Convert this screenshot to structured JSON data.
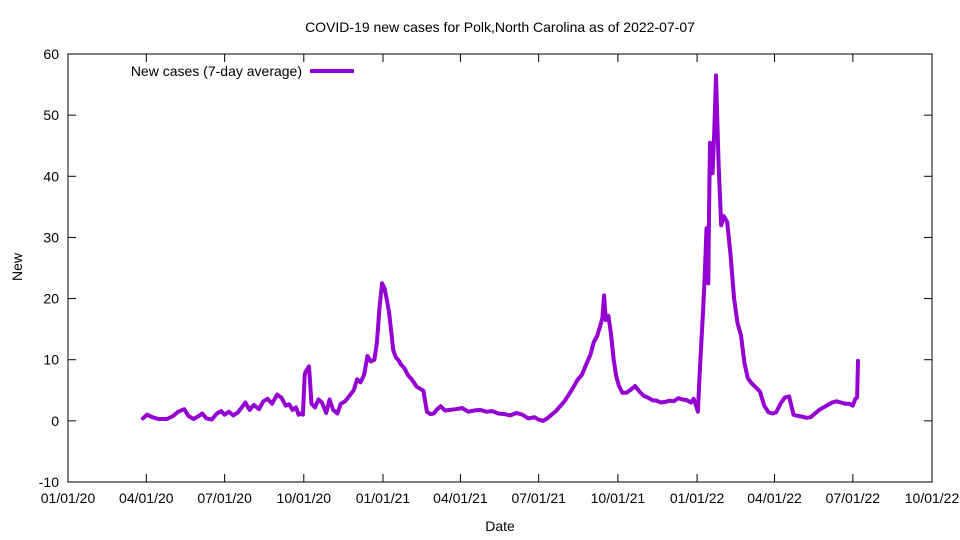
{
  "chart_data": {
    "type": "line",
    "title": "COVID-19 new cases for Polk,North Carolina as of 2022-07-07",
    "xlabel": "Date",
    "ylabel": "New",
    "xlim": [
      "2020-01-01",
      "2022-10-01"
    ],
    "ylim": [
      -10,
      60
    ],
    "x_ticks": [
      "01/01/20",
      "04/01/20",
      "07/01/20",
      "10/01/20",
      "01/01/21",
      "04/01/21",
      "07/01/21",
      "10/01/21",
      "01/01/22",
      "04/01/22",
      "07/01/22",
      "10/01/22"
    ],
    "x_tick_dates": [
      "2020-01-01",
      "2020-04-01",
      "2020-07-01",
      "2020-10-01",
      "2021-01-01",
      "2021-04-01",
      "2021-07-01",
      "2021-10-01",
      "2022-01-01",
      "2022-04-01",
      "2022-07-01",
      "2022-10-01"
    ],
    "y_ticks": [
      -10,
      0,
      10,
      20,
      30,
      40,
      50,
      60
    ],
    "legend": {
      "position": "top-left"
    },
    "series": [
      {
        "name": "New cases (7-day average)",
        "color": "#9400d3",
        "x": [
          "2020-03-28",
          "2020-04-02",
          "2020-04-08",
          "2020-04-15",
          "2020-04-25",
          "2020-05-02",
          "2020-05-08",
          "2020-05-15",
          "2020-05-20",
          "2020-05-26",
          "2020-06-01",
          "2020-06-05",
          "2020-06-10",
          "2020-06-16",
          "2020-06-22",
          "2020-06-27",
          "2020-07-01",
          "2020-07-06",
          "2020-07-11",
          "2020-07-16",
          "2020-07-21",
          "2020-07-25",
          "2020-07-30",
          "2020-08-04",
          "2020-08-10",
          "2020-08-15",
          "2020-08-20",
          "2020-08-25",
          "2020-08-31",
          "2020-09-05",
          "2020-09-10",
          "2020-09-14",
          "2020-09-18",
          "2020-09-22",
          "2020-09-25",
          "2020-09-27",
          "2020-09-30",
          "2020-10-02",
          "2020-10-03",
          "2020-10-07",
          "2020-10-10",
          "2020-10-14",
          "2020-10-18",
          "2020-10-22",
          "2020-10-27",
          "2020-10-31",
          "2020-11-04",
          "2020-11-09",
          "2020-11-13",
          "2020-11-18",
          "2020-11-23",
          "2020-11-28",
          "2020-12-02",
          "2020-12-06",
          "2020-12-10",
          "2020-12-14",
          "2020-12-18",
          "2020-12-22",
          "2020-12-25",
          "2020-12-28",
          "2020-12-31",
          "2021-01-03",
          "2021-01-06",
          "2021-01-08",
          "2021-01-10",
          "2021-01-13",
          "2021-01-16",
          "2021-01-19",
          "2021-01-22",
          "2021-01-26",
          "2021-01-30",
          "2021-02-04",
          "2021-02-09",
          "2021-02-13",
          "2021-02-17",
          "2021-02-21",
          "2021-02-25",
          "2021-03-01",
          "2021-03-05",
          "2021-03-09",
          "2021-03-14",
          "2021-03-20",
          "2021-03-27",
          "2021-04-03",
          "2021-04-10",
          "2021-04-17",
          "2021-04-24",
          "2021-05-01",
          "2021-05-08",
          "2021-05-15",
          "2021-05-22",
          "2021-05-29",
          "2021-06-05",
          "2021-06-12",
          "2021-06-19",
          "2021-06-26",
          "2021-07-01",
          "2021-07-06",
          "2021-07-11",
          "2021-07-16",
          "2021-07-21",
          "2021-07-26",
          "2021-07-31",
          "2021-08-05",
          "2021-08-10",
          "2021-08-15",
          "2021-08-20",
          "2021-08-25",
          "2021-08-30",
          "2021-09-03",
          "2021-09-07",
          "2021-09-10",
          "2021-09-13",
          "2021-09-15",
          "2021-09-17",
          "2021-09-20",
          "2021-09-23",
          "2021-09-26",
          "2021-09-29",
          "2021-10-02",
          "2021-10-06",
          "2021-10-11",
          "2021-10-16",
          "2021-10-21",
          "2021-10-26",
          "2021-10-31",
          "2021-11-05",
          "2021-11-10",
          "2021-11-15",
          "2021-11-20",
          "2021-11-25",
          "2021-11-30",
          "2021-12-05",
          "2021-12-10",
          "2021-12-15",
          "2021-12-20",
          "2021-12-25",
          "2021-12-28",
          "2021-12-31",
          "2022-01-02",
          "2022-01-04",
          "2022-01-06",
          "2022-01-08",
          "2022-01-10",
          "2022-01-11",
          "2022-01-12",
          "2022-01-13",
          "2022-01-14",
          "2022-01-15",
          "2022-01-16",
          "2022-01-17",
          "2022-01-19",
          "2022-01-21",
          "2022-01-23",
          "2022-01-26",
          "2022-01-29",
          "2022-02-01",
          "2022-02-05",
          "2022-02-09",
          "2022-02-13",
          "2022-02-17",
          "2022-02-21",
          "2022-02-25",
          "2022-03-01",
          "2022-03-05",
          "2022-03-10",
          "2022-03-15",
          "2022-03-20",
          "2022-03-25",
          "2022-03-30",
          "2022-04-03",
          "2022-04-08",
          "2022-04-13",
          "2022-04-18",
          "2022-04-23",
          "2022-04-28",
          "2022-05-03",
          "2022-05-08",
          "2022-05-13",
          "2022-05-18",
          "2022-05-23",
          "2022-05-28",
          "2022-06-02",
          "2022-06-07",
          "2022-06-12",
          "2022-06-17",
          "2022-06-22",
          "2022-06-27",
          "2022-07-01",
          "2022-07-04",
          "2022-07-06",
          "2022-07-07"
        ],
        "y": [
          0.4,
          1.0,
          0.6,
          0.3,
          0.3,
          0.8,
          1.5,
          1.9,
          0.8,
          0.3,
          0.8,
          1.2,
          0.4,
          0.2,
          1.2,
          1.6,
          1.0,
          1.5,
          0.9,
          1.3,
          2.2,
          3.0,
          1.8,
          2.6,
          1.9,
          3.2,
          3.6,
          2.8,
          4.3,
          3.8,
          2.5,
          2.7,
          1.8,
          2.2,
          1.0,
          1.2,
          1.0,
          7.5,
          8.0,
          8.9,
          2.8,
          2.2,
          3.5,
          3.0,
          1.3,
          3.5,
          1.8,
          1.2,
          2.8,
          3.2,
          4.1,
          5.0,
          6.8,
          6.3,
          7.5,
          10.6,
          9.7,
          10.0,
          12.8,
          18.5,
          22.5,
          21.6,
          19.4,
          17.8,
          15.4,
          11.5,
          10.4,
          9.9,
          9.2,
          8.6,
          7.5,
          6.7,
          5.6,
          5.3,
          4.9,
          1.5,
          1.1,
          1.2,
          1.9,
          2.4,
          1.7,
          1.8,
          1.9,
          2.1,
          1.5,
          1.7,
          1.8,
          1.5,
          1.6,
          1.2,
          1.1,
          0.9,
          1.3,
          1.0,
          0.4,
          0.6,
          0.2,
          0.0,
          0.4,
          1.0,
          1.6,
          2.4,
          3.2,
          4.3,
          5.4,
          6.7,
          7.5,
          9.2,
          10.8,
          12.9,
          13.9,
          15.3,
          16.8,
          20.5,
          16.5,
          17.2,
          14.2,
          10.1,
          7.3,
          5.8,
          4.6,
          4.6,
          5.1,
          5.7,
          4.8,
          4.1,
          3.8,
          3.4,
          3.3,
          3.0,
          3.1,
          3.3,
          3.2,
          3.7,
          3.5,
          3.4,
          3.0,
          3.6,
          2.4,
          1.5,
          7.5,
          13.0,
          18.0,
          24.0,
          28.0,
          31.5,
          29.0,
          22.5,
          35.0,
          45.5,
          42.0,
          40.5,
          47.5,
          56.5,
          42.0,
          32.0,
          33.5,
          32.5,
          27.0,
          20.0,
          16.0,
          14.0,
          9.5,
          7.0,
          6.2,
          5.5,
          4.8,
          2.5,
          1.4,
          1.2,
          1.4,
          2.8,
          3.8,
          4.0,
          1.0,
          0.8,
          0.7,
          0.5,
          0.6,
          1.2,
          1.8,
          2.2,
          2.6,
          3.0,
          3.2,
          3.0,
          2.8,
          2.8,
          2.5,
          3.6,
          3.8,
          9.8
        ]
      }
    ]
  }
}
